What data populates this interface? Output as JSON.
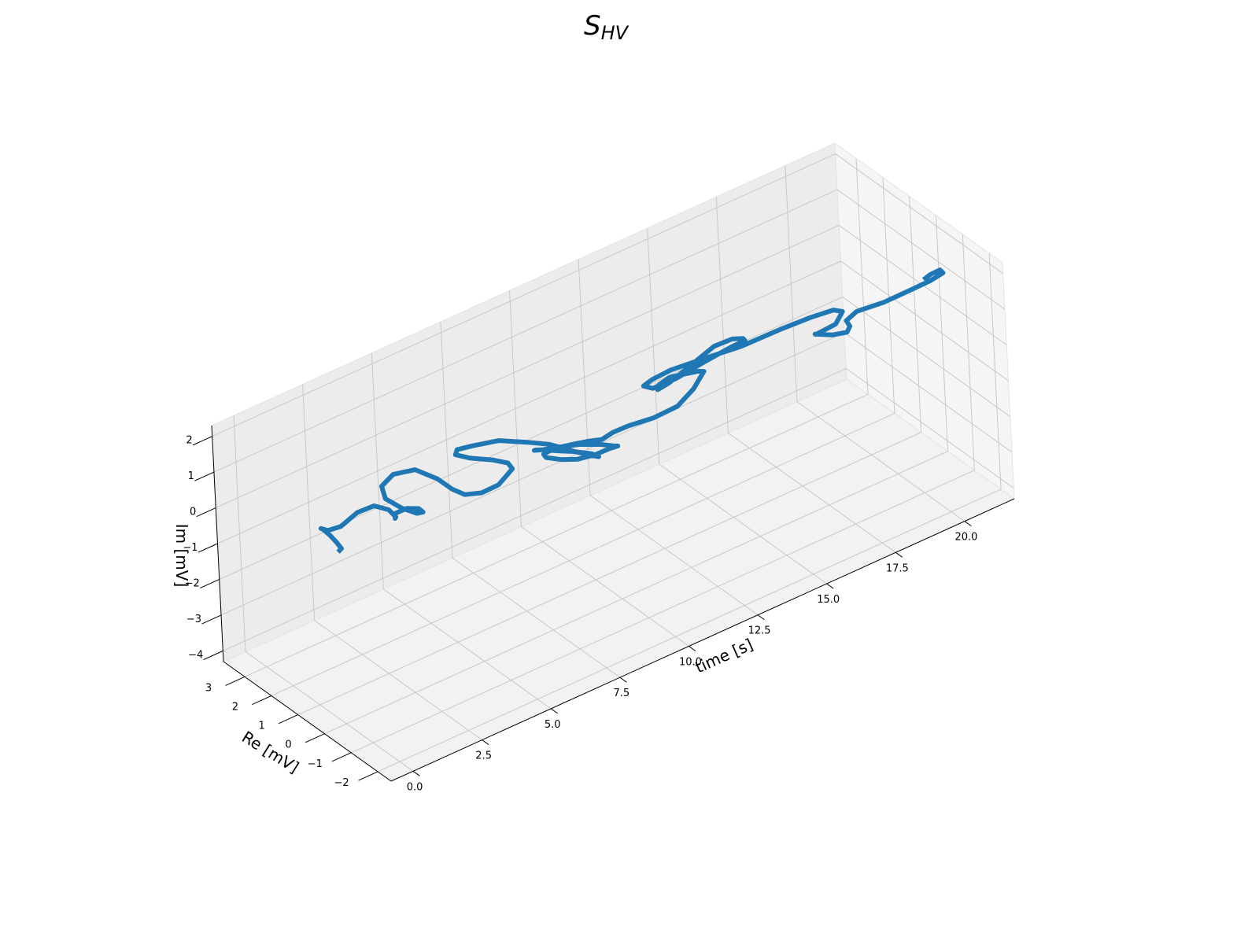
{
  "chart_data": {
    "type": "line",
    "subtype": "3d-line",
    "title": {
      "main": "S",
      "subscript": "HV"
    },
    "xlabel": "time [s]",
    "ylabel": "Re [mV]",
    "zlabel": "Im [mV]",
    "x_ticks": [
      "0.0",
      "2.5",
      "5.0",
      "7.5",
      "10.0",
      "12.5",
      "15.0",
      "17.5",
      "20.0"
    ],
    "y_ticks": [
      "−2",
      "−1",
      "0",
      "1",
      "2",
      "3"
    ],
    "z_ticks": [
      "−4",
      "−3",
      "−2",
      "−1",
      "0",
      "1",
      "2"
    ],
    "xlim": [
      -0.8,
      21.8
    ],
    "ylim": [
      -2.5,
      3.8
    ],
    "zlim": [
      -4.3,
      2.3
    ],
    "grid": true,
    "series": [
      {
        "color": "#1f77b4",
        "points_time_re_im": [
          [
            0.0,
            0.0,
            0.5
          ],
          [
            0.4,
            0.3,
            0.3
          ],
          [
            0.8,
            0.9,
            0.0
          ],
          [
            1.2,
            1.6,
            -0.3
          ],
          [
            1.5,
            2.2,
            -0.55
          ],
          [
            1.8,
            2.6,
            -0.85
          ],
          [
            2.0,
            2.55,
            -0.95
          ],
          [
            2.15,
            2.2,
            -0.7
          ],
          [
            2.3,
            1.7,
            -0.1
          ],
          [
            2.45,
            1.2,
            0.3
          ],
          [
            2.6,
            0.8,
            0.35
          ],
          [
            2.75,
            0.7,
            0.15
          ],
          [
            2.9,
            0.9,
            -0.05
          ],
          [
            3.0,
            1.0,
            0.0
          ],
          [
            3.15,
            0.7,
            0.25
          ],
          [
            3.3,
            0.4,
            0.35
          ],
          [
            3.45,
            0.4,
            0.2
          ],
          [
            3.6,
            0.8,
            -0.1
          ],
          [
            3.8,
            1.6,
            -0.45
          ],
          [
            4.05,
            2.5,
            -0.75
          ],
          [
            4.3,
            2.9,
            -0.7
          ],
          [
            4.55,
            2.7,
            -0.35
          ],
          [
            4.7,
            2.0,
            0.1
          ],
          [
            4.75,
            1.2,
            0.25
          ],
          [
            4.7,
            0.6,
            0.3
          ],
          [
            4.6,
            0.0,
            0.5
          ],
          [
            4.65,
            -0.6,
            0.85
          ],
          [
            4.9,
            -1.0,
            1.2
          ],
          [
            5.2,
            -1.0,
            1.35
          ],
          [
            5.6,
            -0.8,
            1.3
          ],
          [
            6.0,
            -0.2,
            1.0
          ],
          [
            6.3,
            0.7,
            0.5
          ],
          [
            6.5,
            1.8,
            -0.1
          ],
          [
            6.7,
            2.6,
            -0.5
          ],
          [
            6.95,
            2.8,
            -0.55
          ],
          [
            7.15,
            2.4,
            -0.3
          ],
          [
            7.35,
            1.6,
            0.2
          ],
          [
            7.45,
            0.6,
            0.65
          ],
          [
            7.5,
            -0.2,
            1.0
          ],
          [
            7.6,
            -1.0,
            1.2
          ],
          [
            7.8,
            -1.45,
            1.25
          ],
          [
            8.05,
            -1.5,
            1.15
          ],
          [
            8.25,
            -1.0,
            0.9
          ],
          [
            8.35,
            -0.2,
            0.5
          ],
          [
            8.35,
            0.4,
            0.2
          ],
          [
            8.25,
            0.9,
            0.0
          ],
          [
            8.15,
            1.05,
            -0.05
          ],
          [
            8.05,
            1.0,
            0.0
          ],
          [
            8.0,
            0.6,
            0.25
          ],
          [
            8.0,
            -0.1,
            0.7
          ],
          [
            8.1,
            -0.7,
            1.05
          ],
          [
            8.3,
            -1.3,
            1.3
          ],
          [
            8.5,
            -1.6,
            1.35
          ],
          [
            8.7,
            -1.55,
            1.25
          ],
          [
            8.8,
            -1.1,
            0.9
          ],
          [
            8.85,
            -0.5,
            0.4
          ],
          [
            8.85,
            0.2,
            -0.1
          ],
          [
            8.9,
            0.9,
            -0.5
          ],
          [
            9.0,
            1.6,
            -0.85
          ],
          [
            9.1,
            1.8,
            -0.9
          ],
          [
            9.3,
            1.6,
            -0.7
          ],
          [
            9.55,
            1.1,
            -0.4
          ],
          [
            9.8,
            0.8,
            -0.25
          ],
          [
            10.1,
            0.6,
            -0.2
          ],
          [
            10.45,
            0.55,
            -0.1
          ],
          [
            10.8,
            0.3,
            0.1
          ],
          [
            11.05,
            -0.4,
            0.6
          ],
          [
            11.2,
            -1.2,
            1.3
          ],
          [
            11.35,
            -1.7,
            2.0
          ],
          [
            11.5,
            -1.8,
            2.3
          ],
          [
            11.75,
            -1.7,
            2.35
          ],
          [
            12.0,
            -1.2,
            2.0
          ],
          [
            12.15,
            -0.5,
            1.5
          ],
          [
            12.25,
            0.2,
            1.0
          ],
          [
            12.3,
            0.7,
            0.5
          ],
          [
            12.35,
            0.8,
            0.3
          ],
          [
            12.5,
            0.5,
            0.6
          ],
          [
            12.6,
            -0.3,
            1.5
          ],
          [
            12.7,
            -1.1,
            2.4
          ],
          [
            12.9,
            -1.6,
            2.8
          ],
          [
            13.1,
            -1.8,
            2.85
          ],
          [
            13.35,
            -1.6,
            2.6
          ],
          [
            13.5,
            -0.9,
            2.0
          ],
          [
            13.6,
            0.2,
            1.0
          ],
          [
            13.75,
            1.6,
            -0.3
          ],
          [
            14.0,
            2.8,
            -1.3
          ],
          [
            14.4,
            3.6,
            -1.8
          ],
          [
            14.9,
            3.8,
            -1.9
          ],
          [
            15.4,
            3.6,
            -1.7
          ],
          [
            15.9,
            2.9,
            -1.2
          ],
          [
            16.3,
            1.8,
            -0.4
          ],
          [
            16.6,
            0.6,
            0.6
          ],
          [
            16.8,
            -0.4,
            1.4
          ],
          [
            16.9,
            -1.2,
            2.0
          ],
          [
            16.95,
            -1.5,
            2.1
          ],
          [
            17.05,
            -1.1,
            1.5
          ],
          [
            17.15,
            -0.2,
            0.7
          ],
          [
            17.3,
            0.0,
            0.55
          ],
          [
            17.55,
            -0.4,
            0.65
          ],
          [
            17.8,
            -0.7,
            0.8
          ],
          [
            18.05,
            -0.55,
            0.8
          ],
          [
            18.25,
            -0.2,
            0.7
          ],
          [
            18.5,
            -0.35,
            0.95
          ],
          [
            18.8,
            -1.1,
            1.5
          ],
          [
            19.1,
            -1.8,
            2.1
          ],
          [
            19.5,
            -2.2,
            2.45
          ],
          [
            19.9,
            -2.25,
            2.55
          ],
          [
            20.3,
            -1.7,
            2.2
          ],
          [
            20.6,
            -1.0,
            1.6
          ],
          [
            20.7,
            -0.6,
            1.2
          ]
        ]
      }
    ]
  }
}
